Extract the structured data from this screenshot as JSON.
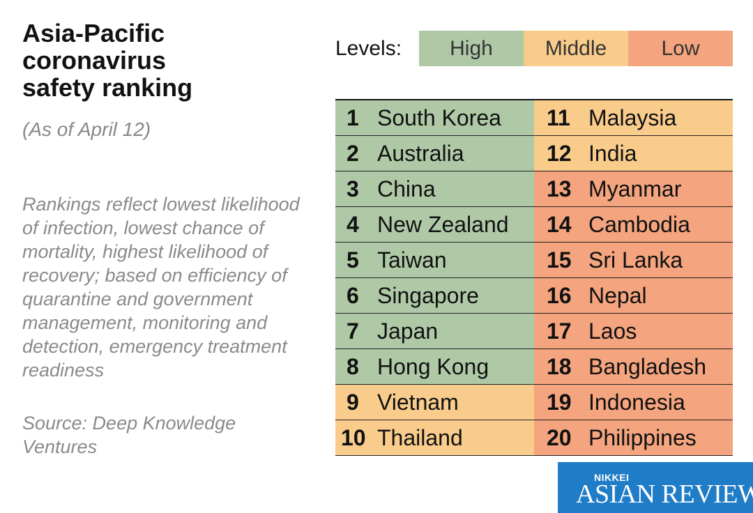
{
  "title": "Asia-Pacific coronavirus safety ranking",
  "subtitle": "(As of April 12)",
  "description": "Rankings reflect lowest likelihood of infection, lowest chance of mortality, highest likelihood of recovery; based on efficiency of quarantine and government management, monitoring and detection, emergency treatment readiness",
  "source": "Source: Deep Knowledge Ventures",
  "legend": {
    "label": "Levels:",
    "levels": [
      {
        "name": "High",
        "color": "#afc9a6"
      },
      {
        "name": "Middle",
        "color": "#f9cc8c"
      },
      {
        "name": "Low",
        "color": "#f4a47e"
      }
    ]
  },
  "ranking": [
    {
      "rank": "1",
      "country": "South Korea",
      "level": "High"
    },
    {
      "rank": "2",
      "country": "Australia",
      "level": "High"
    },
    {
      "rank": "3",
      "country": "China",
      "level": "High"
    },
    {
      "rank": "4",
      "country": "New Zealand",
      "level": "High"
    },
    {
      "rank": "5",
      "country": "Taiwan",
      "level": "High"
    },
    {
      "rank": "6",
      "country": "Singapore",
      "level": "High"
    },
    {
      "rank": "7",
      "country": "Japan",
      "level": "High"
    },
    {
      "rank": "8",
      "country": "Hong Kong",
      "level": "High"
    },
    {
      "rank": "9",
      "country": "Vietnam",
      "level": "Middle"
    },
    {
      "rank": "10",
      "country": "Thailand",
      "level": "Middle"
    },
    {
      "rank": "11",
      "country": "Malaysia",
      "level": "Middle"
    },
    {
      "rank": "12",
      "country": "India",
      "level": "Middle"
    },
    {
      "rank": "13",
      "country": "Myanmar",
      "level": "Low"
    },
    {
      "rank": "14",
      "country": "Cambodia",
      "level": "Low"
    },
    {
      "rank": "15",
      "country": "Sri Lanka",
      "level": "Low"
    },
    {
      "rank": "16",
      "country": "Nepal",
      "level": "Low"
    },
    {
      "rank": "17",
      "country": "Laos",
      "level": "Low"
    },
    {
      "rank": "18",
      "country": "Bangladesh",
      "level": "Low"
    },
    {
      "rank": "19",
      "country": "Indonesia",
      "level": "Low"
    },
    {
      "rank": "20",
      "country": "Philippines",
      "level": "Low"
    }
  ],
  "logo": {
    "top": "NIKKEI",
    "main": "ASIAN REVIEW",
    "color": "#1f7cc7"
  }
}
